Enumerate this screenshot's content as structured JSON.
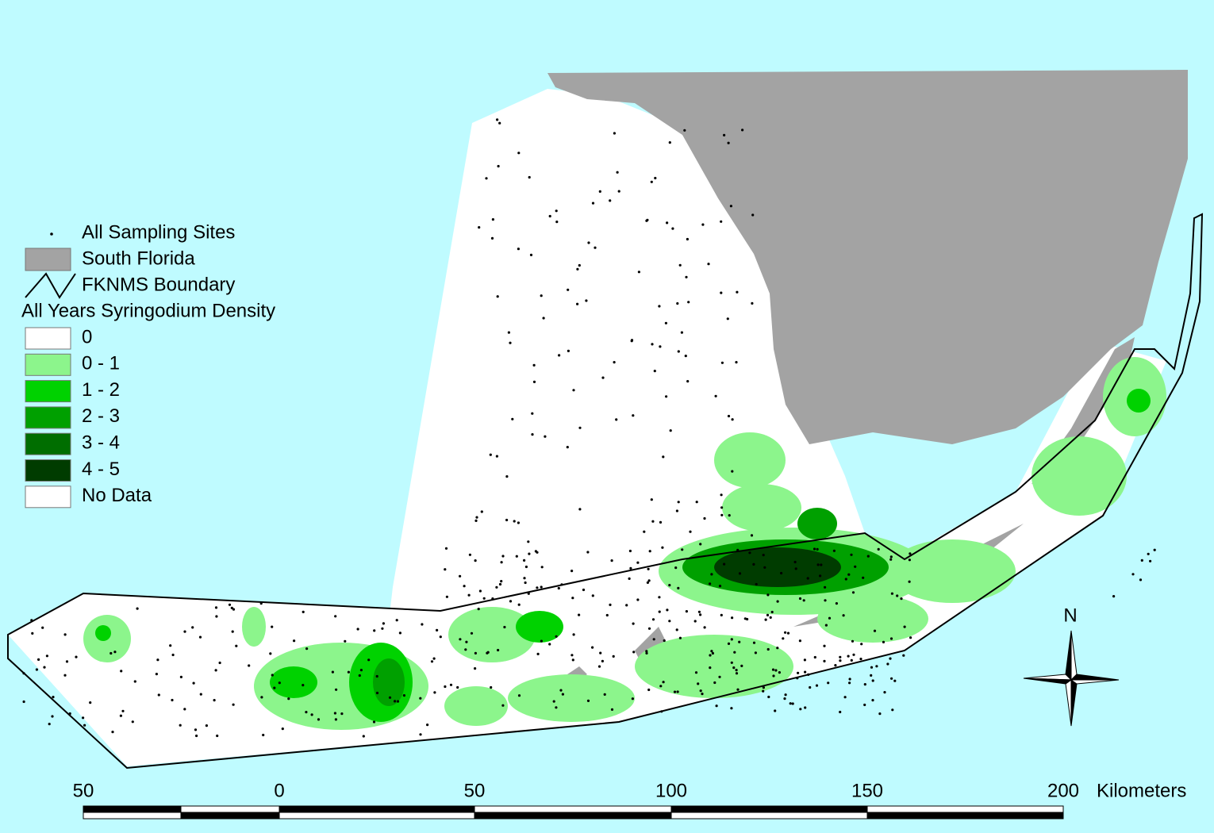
{
  "legend": {
    "items": [
      {
        "label": "All Sampling Sites"
      },
      {
        "label": "South Florida",
        "color": "#a3a3a3"
      },
      {
        "label": "FKNMS Boundary"
      }
    ],
    "density_title": "All Years Syringodium Density",
    "classes": [
      {
        "label": "0",
        "color": "#ffffff"
      },
      {
        "label": "0 - 1",
        "color": "#8cf58c"
      },
      {
        "label": "1 - 2",
        "color": "#00d200"
      },
      {
        "label": "2 - 3",
        "color": "#00a000"
      },
      {
        "label": "3 - 4",
        "color": "#006e00"
      },
      {
        "label": "4 - 5",
        "color": "#003c00"
      },
      {
        "label": "No Data",
        "color": "#ffffff"
      }
    ]
  },
  "north": "N",
  "scale_bar": {
    "labels": [
      "50",
      "0",
      "50",
      "100",
      "150",
      "200"
    ],
    "unit": "Kilometers"
  }
}
